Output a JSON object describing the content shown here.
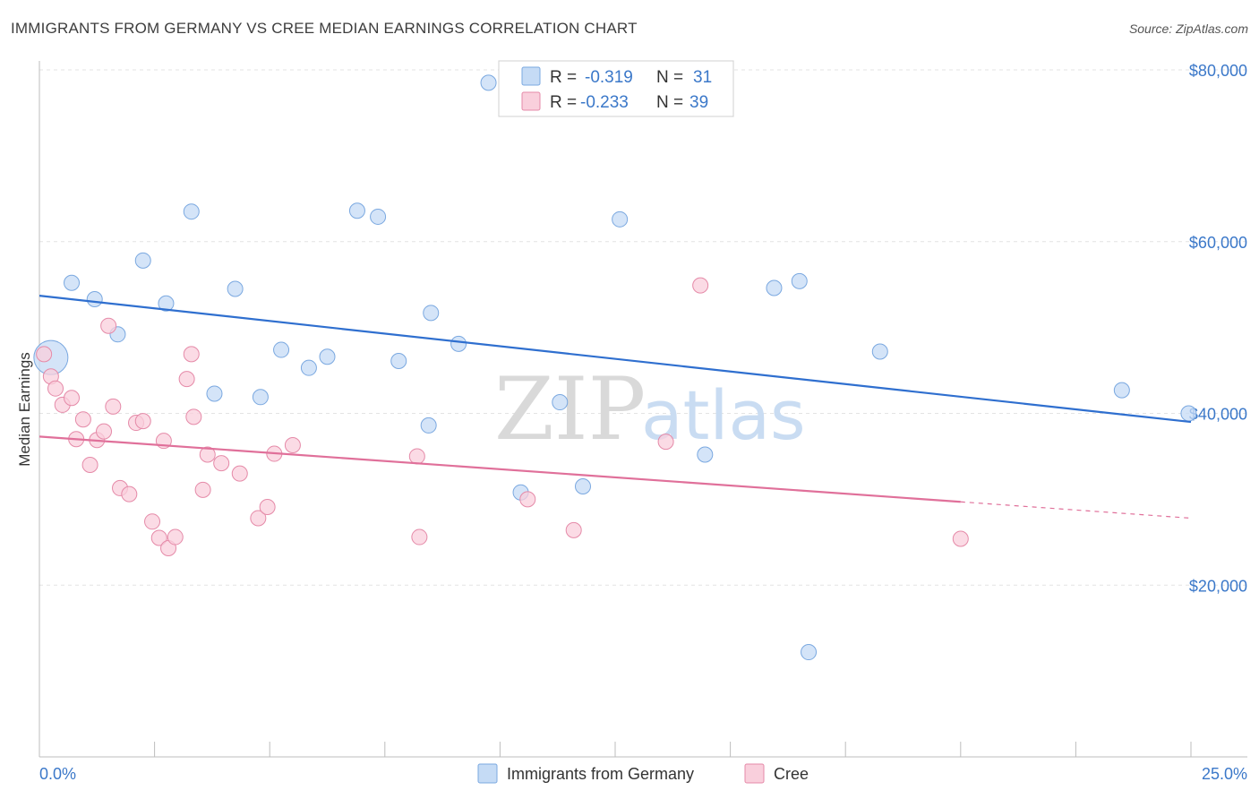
{
  "header": {
    "title": "IMMIGRANTS FROM GERMANY VS CREE MEDIAN EARNINGS CORRELATION CHART",
    "source": "Source: ZipAtlas.com"
  },
  "watermark": {
    "zip": "ZIP",
    "atlas": "atlas"
  },
  "legend": {
    "rows": [
      {
        "r_label": "R =",
        "r_value": "-0.319",
        "n_label": "N =",
        "n_value": "31",
        "color": "#a8c8f0"
      },
      {
        "r_label": "R =",
        "r_value": "-0.233",
        "n_label": "N =",
        "n_value": "39",
        "color": "#f5b8cb"
      }
    ]
  },
  "colors": {
    "blue_fill": "#c5dbf5",
    "blue_stroke": "#7aa8e0",
    "blue_line": "#2f6fcf",
    "pink_fill": "#f9cfdc",
    "pink_stroke": "#e58aa8",
    "pink_line": "#e0709a",
    "label": "#3b78c9",
    "grid": "#e3e3e3"
  },
  "chart_data": {
    "type": "scatter",
    "title": "IMMIGRANTS FROM GERMANY VS CREE MEDIAN EARNINGS CORRELATION CHART",
    "xlabel": "",
    "ylabel": "Median Earnings",
    "xlim": [
      0,
      25
    ],
    "ylim": [
      0,
      80000
    ],
    "x_tick_labels": [
      "0.0%",
      "25.0%"
    ],
    "y_ticks": [
      20000,
      40000,
      60000,
      80000
    ],
    "y_tick_labels": [
      "$20,000",
      "$40,000",
      "$60,000",
      "$80,000"
    ],
    "grid": true,
    "legend_position": "top-center",
    "series": [
      {
        "name": "Immigrants from Germany",
        "R": -0.319,
        "N": 31,
        "trend": {
          "x0": 0,
          "y0": 53700,
          "x1": 25,
          "y1": 39000
        },
        "points": [
          {
            "x": 0.25,
            "y": 46500,
            "big": true
          },
          {
            "x": 0.7,
            "y": 55200
          },
          {
            "x": 1.2,
            "y": 53300
          },
          {
            "x": 1.7,
            "y": 49200
          },
          {
            "x": 2.25,
            "y": 57800
          },
          {
            "x": 2.75,
            "y": 52800
          },
          {
            "x": 3.3,
            "y": 63500
          },
          {
            "x": 3.8,
            "y": 42300
          },
          {
            "x": 4.25,
            "y": 54500
          },
          {
            "x": 4.8,
            "y": 41900
          },
          {
            "x": 5.25,
            "y": 47400
          },
          {
            "x": 5.85,
            "y": 45300
          },
          {
            "x": 6.25,
            "y": 46600
          },
          {
            "x": 6.9,
            "y": 63600
          },
          {
            "x": 7.35,
            "y": 62900
          },
          {
            "x": 7.8,
            "y": 46100
          },
          {
            "x": 8.45,
            "y": 38600
          },
          {
            "x": 8.5,
            "y": 51700
          },
          {
            "x": 9.1,
            "y": 48100
          },
          {
            "x": 9.75,
            "y": 78500
          },
          {
            "x": 10.45,
            "y": 30800
          },
          {
            "x": 11.3,
            "y": 41300
          },
          {
            "x": 11.8,
            "y": 31500
          },
          {
            "x": 12.6,
            "y": 62600
          },
          {
            "x": 14.45,
            "y": 35200
          },
          {
            "x": 15.95,
            "y": 54600
          },
          {
            "x": 16.5,
            "y": 55400
          },
          {
            "x": 16.7,
            "y": 12200
          },
          {
            "x": 18.25,
            "y": 47200
          },
          {
            "x": 23.5,
            "y": 42700
          },
          {
            "x": 24.95,
            "y": 40000
          }
        ]
      },
      {
        "name": "Cree",
        "R": -0.233,
        "N": 39,
        "trend": {
          "x0": 0,
          "y0": 37300,
          "x1": 20.0,
          "y1": 29700,
          "dash_x1": 25,
          "dash_y1": 27800
        },
        "points": [
          {
            "x": 0.1,
            "y": 46900
          },
          {
            "x": 0.25,
            "y": 44300
          },
          {
            "x": 0.35,
            "y": 42900
          },
          {
            "x": 0.5,
            "y": 41000
          },
          {
            "x": 0.7,
            "y": 41800
          },
          {
            "x": 0.8,
            "y": 37000
          },
          {
            "x": 0.95,
            "y": 39300
          },
          {
            "x": 1.1,
            "y": 34000
          },
          {
            "x": 1.25,
            "y": 36900
          },
          {
            "x": 1.4,
            "y": 37900
          },
          {
            "x": 1.5,
            "y": 50200
          },
          {
            "x": 1.6,
            "y": 40800
          },
          {
            "x": 1.75,
            "y": 31300
          },
          {
            "x": 1.95,
            "y": 30600
          },
          {
            "x": 2.1,
            "y": 38900
          },
          {
            "x": 2.25,
            "y": 39100
          },
          {
            "x": 2.45,
            "y": 27400
          },
          {
            "x": 2.6,
            "y": 25500
          },
          {
            "x": 2.7,
            "y": 36800
          },
          {
            "x": 2.8,
            "y": 24300
          },
          {
            "x": 2.95,
            "y": 25600
          },
          {
            "x": 3.2,
            "y": 44000
          },
          {
            "x": 3.3,
            "y": 46900
          },
          {
            "x": 3.35,
            "y": 39600
          },
          {
            "x": 3.55,
            "y": 31100
          },
          {
            "x": 3.65,
            "y": 35200
          },
          {
            "x": 3.95,
            "y": 34200
          },
          {
            "x": 4.35,
            "y": 33000
          },
          {
            "x": 4.75,
            "y": 27800
          },
          {
            "x": 4.95,
            "y": 29100
          },
          {
            "x": 5.1,
            "y": 35300
          },
          {
            "x": 5.5,
            "y": 36300
          },
          {
            "x": 8.2,
            "y": 35000
          },
          {
            "x": 8.25,
            "y": 25600
          },
          {
            "x": 10.6,
            "y": 30000
          },
          {
            "x": 11.6,
            "y": 26400
          },
          {
            "x": 13.6,
            "y": 36700
          },
          {
            "x": 14.35,
            "y": 54900
          },
          {
            "x": 20.0,
            "y": 25400
          }
        ]
      }
    ]
  }
}
